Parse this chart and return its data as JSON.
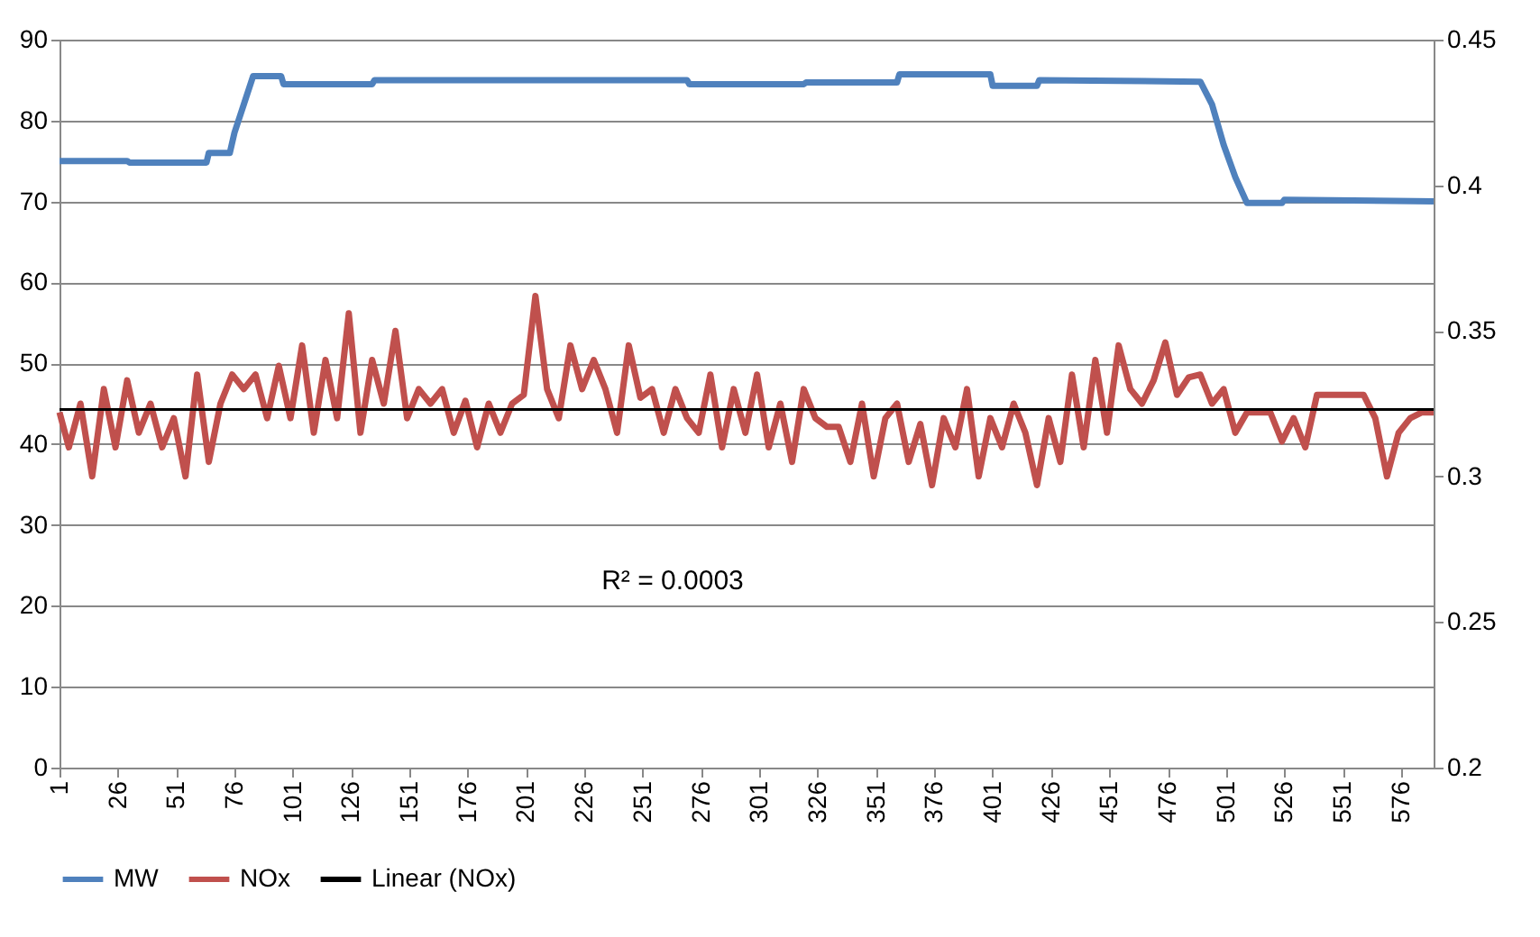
{
  "chart_data": {
    "type": "line",
    "x": [
      1,
      5,
      10,
      15,
      20,
      25,
      30,
      35,
      40,
      45,
      50,
      55,
      60,
      65,
      70,
      75,
      80,
      85,
      90,
      95,
      100,
      105,
      110,
      115,
      120,
      125,
      130,
      135,
      140,
      145,
      150,
      155,
      160,
      165,
      170,
      175,
      180,
      185,
      190,
      195,
      200,
      205,
      210,
      215,
      220,
      225,
      230,
      235,
      240,
      245,
      250,
      255,
      260,
      265,
      270,
      275,
      280,
      285,
      290,
      295,
      300,
      305,
      310,
      315,
      320,
      325,
      330,
      335,
      340,
      345,
      350,
      355,
      360,
      365,
      370,
      375,
      380,
      385,
      390,
      395,
      400,
      405,
      410,
      415,
      420,
      425,
      430,
      435,
      440,
      445,
      450,
      455,
      460,
      465,
      470,
      475,
      480,
      485,
      490,
      495,
      500,
      505,
      510,
      515,
      520,
      525,
      530,
      535,
      540,
      545,
      550,
      555,
      560,
      565,
      570,
      575,
      580,
      585,
      590
    ],
    "xlim": [
      1,
      590
    ],
    "xticks": [
      1,
      26,
      51,
      76,
      101,
      126,
      151,
      176,
      201,
      226,
      251,
      276,
      301,
      326,
      351,
      376,
      401,
      426,
      451,
      476,
      501,
      526,
      551,
      576
    ],
    "ylim": [
      0,
      90
    ],
    "yticks": [
      0,
      10,
      20,
      30,
      40,
      50,
      60,
      70,
      80,
      90
    ],
    "y2lim": [
      0.2,
      0.45
    ],
    "y2ticks": [
      0.2,
      0.25,
      0.3,
      0.35,
      0.4,
      0.45
    ],
    "grid": "y",
    "legend": "bottom",
    "annotations": [
      "R² = 0.0003"
    ],
    "series": [
      {
        "name": "MW",
        "color": "#4f81bd",
        "x": [
          1,
          30,
          31,
          64,
          65,
          74,
          76,
          80,
          84,
          96,
          97,
          135,
          136,
          270,
          271,
          320,
          321,
          360,
          361,
          400,
          401,
          420,
          421,
          490,
          495,
          500,
          505,
          510,
          525,
          526,
          590
        ],
        "values": [
          75,
          75,
          74.8,
          74.8,
          76,
          76,
          78.5,
          82,
          85.5,
          85.5,
          84.5,
          84.5,
          85,
          85,
          84.5,
          84.5,
          84.7,
          84.7,
          85.7,
          85.7,
          84.3,
          84.3,
          85,
          84.8,
          82,
          77,
          73,
          69.8,
          69.8,
          70.2,
          70
        ]
      },
      {
        "name": "NOx",
        "color": "#c0504d",
        "axis": "y2",
        "values": [
          0.322,
          0.31,
          0.325,
          0.3,
          0.33,
          0.31,
          0.333,
          0.315,
          0.325,
          0.31,
          0.32,
          0.3,
          0.335,
          0.305,
          0.325,
          0.335,
          0.33,
          0.335,
          0.32,
          0.338,
          0.32,
          0.345,
          0.315,
          0.34,
          0.32,
          0.356,
          0.315,
          0.34,
          0.325,
          0.35,
          0.32,
          0.33,
          0.325,
          0.33,
          0.315,
          0.326,
          0.31,
          0.325,
          0.315,
          0.325,
          0.328,
          0.362,
          0.33,
          0.32,
          0.345,
          0.33,
          0.34,
          0.33,
          0.315,
          0.345,
          0.327,
          0.33,
          0.315,
          0.33,
          0.32,
          0.315,
          0.335,
          0.31,
          0.33,
          0.315,
          0.335,
          0.31,
          0.325,
          0.305,
          0.33,
          0.32,
          0.317,
          0.317,
          0.305,
          0.325,
          0.3,
          0.32,
          0.325,
          0.305,
          0.318,
          0.297,
          0.32,
          0.31,
          0.33,
          0.3,
          0.32,
          0.31,
          0.325,
          0.315,
          0.297,
          0.32,
          0.305,
          0.335,
          0.31,
          0.34,
          0.315,
          0.345,
          0.33,
          0.325,
          0.333,
          0.346,
          0.328,
          0.334,
          0.335,
          0.325,
          0.33,
          0.315,
          0.322,
          0.322,
          0.322,
          0.312,
          0.32,
          0.31,
          0.328,
          0.328,
          0.328,
          0.328,
          0.328,
          0.32,
          0.3,
          0.315,
          0.32,
          0.322,
          0.322
        ]
      },
      {
        "name": "Linear (NOx)",
        "color": "#000000",
        "axis": "y2",
        "x": [
          1,
          590
        ],
        "values": [
          0.323,
          0.323
        ]
      }
    ]
  }
}
